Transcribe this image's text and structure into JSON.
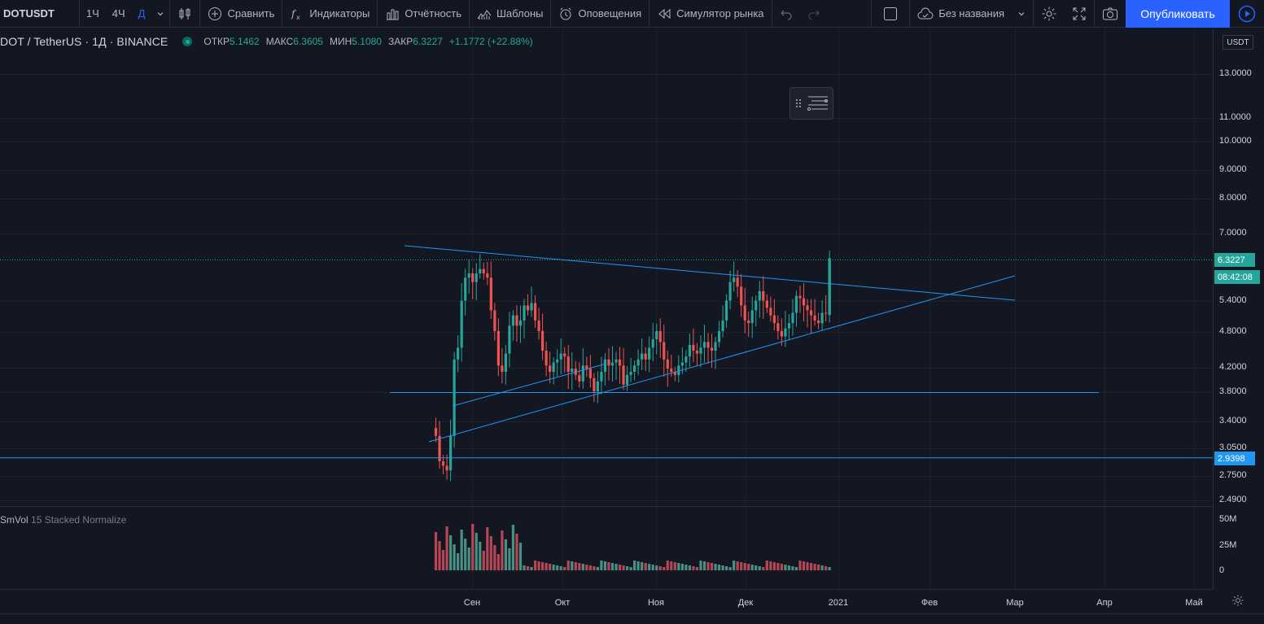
{
  "toolbar": {
    "symbol": "DOTUSDT",
    "intervals": [
      "1Ч",
      "4Ч",
      "Д"
    ],
    "active_interval": "Д",
    "compare_label": "Сравнить",
    "indicators_label": "Индикаторы",
    "financials_label": "Отчётность",
    "templates_label": "Шаблоны",
    "alerts_label": "Оповещения",
    "replay_label": "Симулятор рынка",
    "layout_name": "Без названия",
    "publish_label": "Опубликовать"
  },
  "legend": {
    "title": "DOT / TetherUS · 1Д · BINANCE",
    "open_label": "ОТКР",
    "open": "5.1462",
    "high_label": "МАКС",
    "high": "6.3605",
    "low_label": "МИН",
    "low": "5.1080",
    "close_label": "ЗАКР",
    "close": "6.3227",
    "change": "+1.1772 (+22.88%)"
  },
  "volume_legend": {
    "name": "SmVol",
    "params": "15 Stacked Normalize"
  },
  "price_axis": {
    "currency": "USDT",
    "ticks": [
      "13.0000",
      "11.0000",
      "10.0000",
      "9.0000",
      "8.0000",
      "7.0000",
      "5.4000",
      "4.8000",
      "4.2000",
      "3.8000",
      "3.4000",
      "3.0500",
      "2.7500",
      "2.4900"
    ],
    "last_price": "6.3227",
    "countdown": "08:42:08",
    "line_price": "2.9398",
    "volume_ticks": [
      "50M",
      "25M",
      "0"
    ]
  },
  "time_axis": {
    "labels": [
      "Сен",
      "Окт",
      "Ноя",
      "Дек",
      "2021",
      "Фев",
      "Мар",
      "Апр",
      "Май"
    ]
  },
  "chart_data": {
    "type": "candlestick",
    "symbol": "DOTUSDT",
    "interval": "1D",
    "exchange": "BINANCE",
    "log_scale": true,
    "last": {
      "open": 5.1462,
      "high": 6.3605,
      "low": 5.108,
      "close": 6.3227
    },
    "horizontal_lines": [
      2.9398,
      3.77
    ],
    "colors": {
      "up": "#26a69a",
      "down": "#ef5350",
      "drawing": "#2196f3",
      "background": "#131722"
    }
  },
  "colors": {
    "accent": "#2962ff",
    "up": "#26a69a",
    "down": "#ef5350",
    "line": "#2196f3"
  }
}
